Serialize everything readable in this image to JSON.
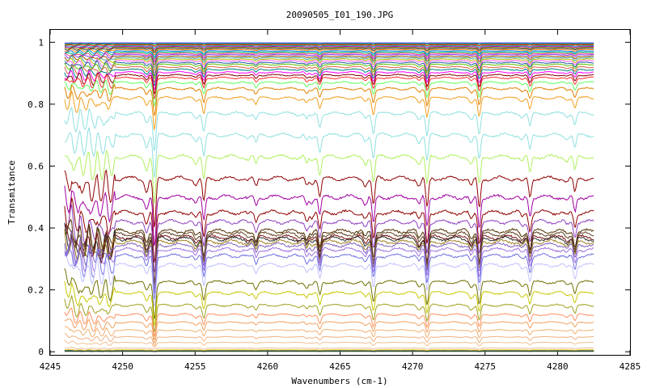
{
  "chart_data": {
    "type": "line",
    "title": "20090505_I01_190.JPG",
    "xlabel": "Wavenumbers (cm-1)",
    "ylabel": "Transmitance",
    "xlim": [
      4245,
      4285
    ],
    "ylim": [
      -0.01,
      1.04
    ],
    "x_range": [
      4246,
      4282.5
    ],
    "x_ticks": [
      "4245",
      "4250",
      "4255",
      "4260",
      "4265",
      "4270",
      "4275",
      "4280",
      "4285"
    ],
    "y_ticks": [
      "0",
      "0.2",
      "0.4",
      "0.6",
      "0.8",
      "1"
    ],
    "grid": false,
    "legend": "none",
    "absorption_lines": [
      {
        "x": 4252.2,
        "depth": 0.17
      },
      {
        "x": 4255.6,
        "depth": 0.08
      },
      {
        "x": 4259.2,
        "depth": 0.03
      },
      {
        "x": 4262.7,
        "depth": 0.025
      },
      {
        "x": 4263.6,
        "depth": 0.06
      },
      {
        "x": 4267.3,
        "depth": 0.09
      },
      {
        "x": 4271.0,
        "depth": 0.1
      },
      {
        "x": 4274.6,
        "depth": 0.1
      },
      {
        "x": 4278.1,
        "depth": 0.06
      },
      {
        "x": 4281.2,
        "depth": 0.05
      }
    ],
    "series": [
      {
        "level": 0.998,
        "color": "#1a1aff"
      },
      {
        "level": 0.995,
        "color": "#00a000"
      },
      {
        "level": 0.992,
        "color": "#ff0000"
      },
      {
        "level": 0.989,
        "color": "#00b0b0"
      },
      {
        "level": 0.986,
        "color": "#b000b0"
      },
      {
        "level": 0.983,
        "color": "#808000"
      },
      {
        "level": 0.98,
        "color": "#404040"
      },
      {
        "level": 0.976,
        "color": "#ff8000"
      },
      {
        "level": 0.972,
        "color": "#0080ff"
      },
      {
        "level": 0.968,
        "color": "#00c060"
      },
      {
        "level": 0.964,
        "color": "#ff4080"
      },
      {
        "level": 0.96,
        "color": "#8040ff"
      },
      {
        "level": 0.955,
        "color": "#a05000"
      },
      {
        "level": 0.95,
        "color": "#40a0a0"
      },
      {
        "level": 0.945,
        "color": "#c0c000"
      },
      {
        "level": 0.94,
        "color": "#ff60ff"
      },
      {
        "level": 0.934,
        "color": "#2060a0"
      },
      {
        "level": 0.928,
        "color": "#60c000"
      },
      {
        "level": 0.92,
        "color": "#e06040"
      },
      {
        "level": 0.912,
        "color": "#008080"
      },
      {
        "level": 0.903,
        "color": "#ff00ff"
      },
      {
        "level": 0.894,
        "color": "#800000"
      },
      {
        "level": 0.885,
        "color": "#ff3030"
      },
      {
        "level": 0.87,
        "color": "#60ff60"
      },
      {
        "level": 0.85,
        "color": "#e08000"
      },
      {
        "level": 0.82,
        "color": "#f0a020"
      },
      {
        "level": 0.77,
        "color": "#90e0e0"
      },
      {
        "level": 0.7,
        "color": "#90e0e0"
      },
      {
        "level": 0.63,
        "color": "#b0f060"
      },
      {
        "level": 0.56,
        "color": "#900000"
      },
      {
        "level": 0.5,
        "color": "#a000a0"
      },
      {
        "level": 0.45,
        "color": "#900000"
      },
      {
        "level": 0.42,
        "color": "#9040c0"
      },
      {
        "level": 0.39,
        "color": "#503000"
      },
      {
        "level": 0.38,
        "color": "#604020"
      },
      {
        "level": 0.37,
        "color": "#7a1010"
      },
      {
        "level": 0.365,
        "color": "#303030"
      },
      {
        "level": 0.355,
        "color": "#a08020"
      },
      {
        "level": 0.345,
        "color": "#8060c0"
      },
      {
        "level": 0.33,
        "color": "#a070e0"
      },
      {
        "level": 0.31,
        "color": "#7070e0"
      },
      {
        "level": 0.28,
        "color": "#c0c0ff"
      },
      {
        "level": 0.225,
        "color": "#707000"
      },
      {
        "level": 0.19,
        "color": "#c8c800"
      },
      {
        "level": 0.15,
        "color": "#a0a020"
      },
      {
        "level": 0.12,
        "color": "#ff9060"
      },
      {
        "level": 0.095,
        "color": "#f0a060"
      },
      {
        "level": 0.07,
        "color": "#f0b070"
      },
      {
        "level": 0.048,
        "color": "#f0b080"
      },
      {
        "level": 0.03,
        "color": "#f0c090"
      },
      {
        "level": 0.012,
        "color": "#e0c0a0"
      },
      {
        "level": 0.006,
        "color": "#f0c000"
      },
      {
        "level": 0.003,
        "color": "#0000a0"
      },
      {
        "level": 0.002,
        "color": "#00a000"
      },
      {
        "level": 0.001,
        "color": "#404040"
      }
    ]
  }
}
